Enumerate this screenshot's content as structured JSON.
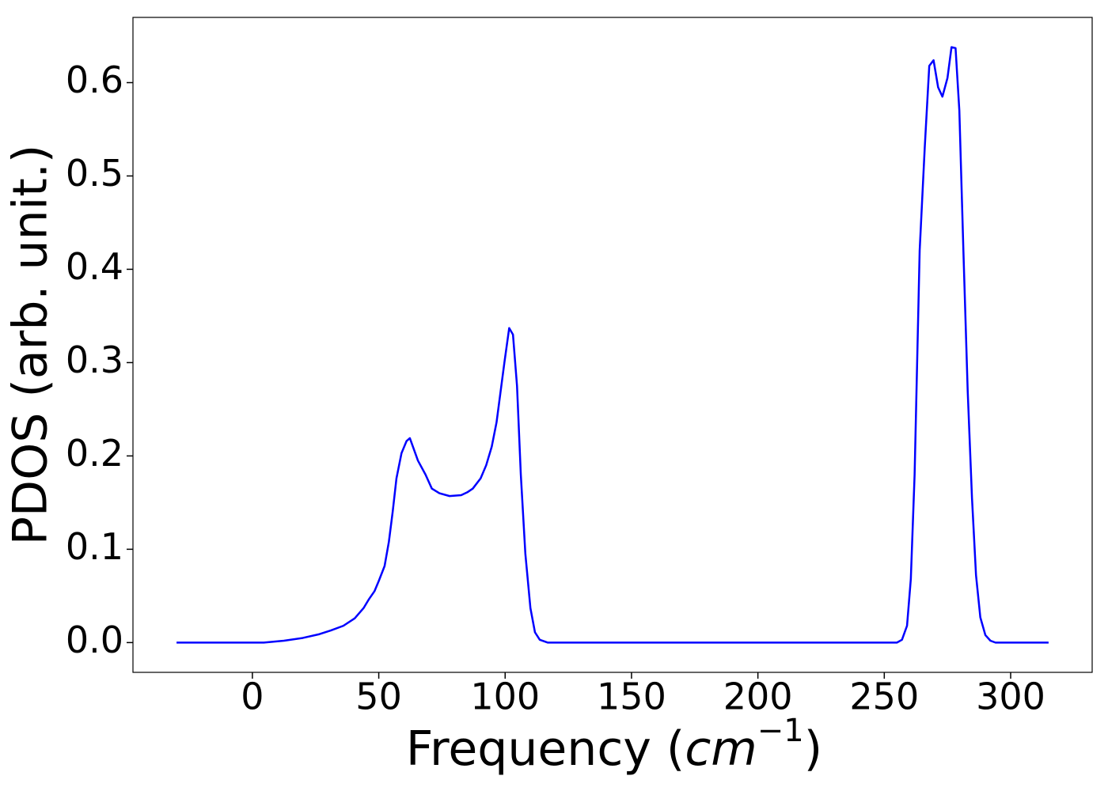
{
  "chart_data": {
    "type": "line",
    "xlabel": [
      "Frequency (",
      "cm",
      "−1",
      ")"
    ],
    "ylabel": "PDOS (arb. unit.)",
    "x": [
      -30,
      4.5,
      12.5,
      20,
      26.5,
      31,
      36,
      40.5,
      44,
      46,
      48.3,
      50,
      52.3,
      54,
      55.5,
      57,
      59,
      61,
      62.3,
      63.5,
      65.5,
      68.5,
      71,
      74,
      78,
      82.6,
      85,
      87.2,
      90.3,
      92.5,
      94.7,
      96.6,
      99.7,
      101.6,
      103.1,
      104.7,
      106.2,
      108,
      110,
      111.8,
      113.7,
      116.8,
      255,
      257,
      259,
      260.5,
      262,
      264,
      266,
      267.8,
      269.5,
      271.3,
      273,
      275,
      276.6,
      278.2,
      279.7,
      281.3,
      283,
      284.7,
      286.3,
      288,
      290,
      292,
      294,
      315
    ],
    "series": [
      {
        "name": "PDOS",
        "color": "#0000ff",
        "values": [
          0,
          0,
          0.002,
          0.005,
          0.009,
          0.013,
          0.018,
          0.026,
          0.037,
          0.046,
          0.055,
          0.066,
          0.082,
          0.108,
          0.14,
          0.176,
          0.203,
          0.216,
          0.219,
          0.21,
          0.195,
          0.18,
          0.165,
          0.16,
          0.157,
          0.158,
          0.161,
          0.165,
          0.176,
          0.19,
          0.21,
          0.236,
          0.3,
          0.337,
          0.33,
          0.275,
          0.18,
          0.095,
          0.037,
          0.011,
          0.003,
          0,
          0,
          0.003,
          0.018,
          0.068,
          0.18,
          0.42,
          0.53,
          0.618,
          0.624,
          0.595,
          0.585,
          0.605,
          0.638,
          0.637,
          0.57,
          0.42,
          0.27,
          0.155,
          0.072,
          0.027,
          0.008,
          0.002,
          0,
          0
        ]
      }
    ],
    "xlim": [
      -47.25,
      332.25
    ],
    "ylim": [
      -0.0319,
      0.6699
    ],
    "xticks": [
      0,
      50,
      100,
      150,
      200,
      250,
      300
    ],
    "yticks": [
      {
        "value": 0,
        "label": "0.0"
      },
      0.1,
      0.2,
      0.3,
      0.4,
      0.5,
      0.6
    ]
  }
}
